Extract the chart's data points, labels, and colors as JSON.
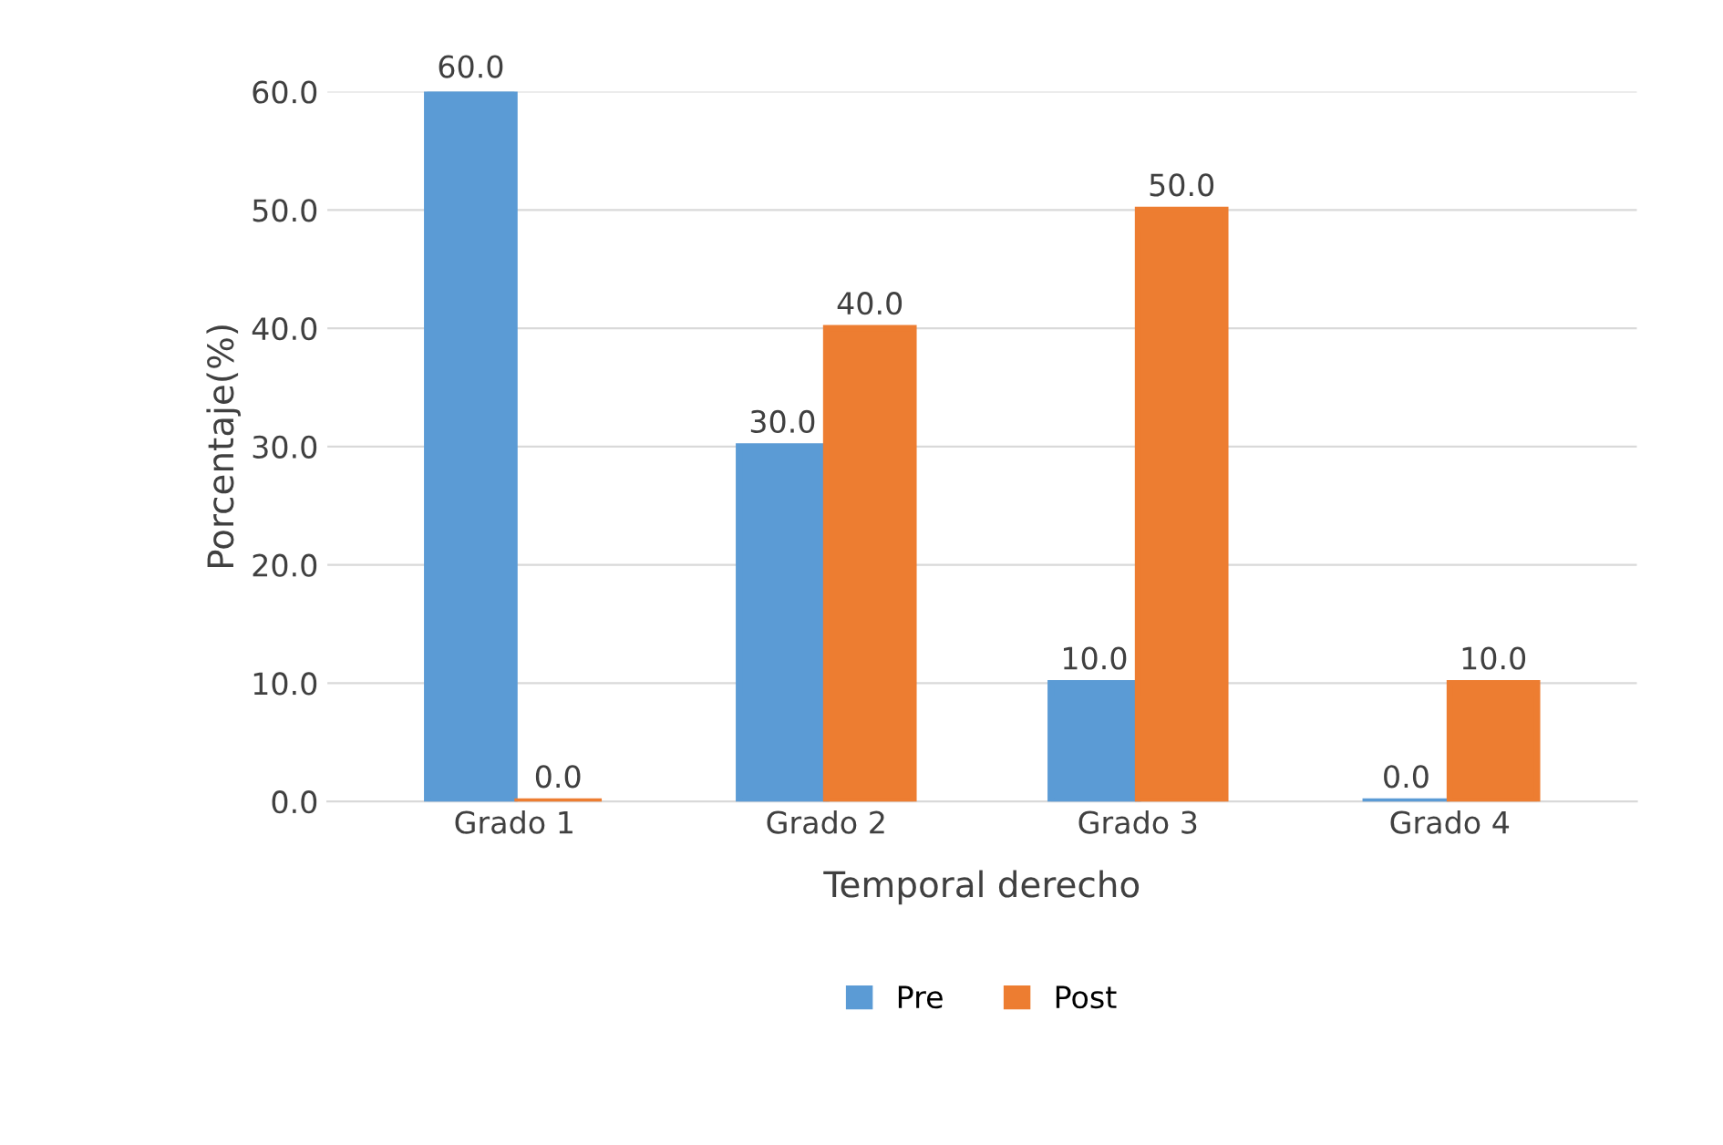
{
  "chart_data": {
    "type": "bar",
    "xlabel": "Temporal derecho",
    "ylabel": "Porcentaje(%)",
    "categories": [
      "Grado 1",
      "Grado 2",
      "Grado 3",
      "Grado 4"
    ],
    "series": [
      {
        "name": "Pre",
        "color": "#5b9bd5",
        "values": [
          60,
          30,
          10,
          0
        ],
        "value_labels": [
          "60.0",
          "30.0",
          "10.0",
          "0.0"
        ]
      },
      {
        "name": "Post",
        "color": "#ed7d31",
        "values": [
          0,
          40,
          50,
          10
        ],
        "value_labels": [
          "0.0",
          "40.0",
          "50.0",
          "10.0"
        ]
      }
    ],
    "ylim": [
      0,
      60
    ],
    "yticks": [
      {
        "value": 0,
        "label": "0.0"
      },
      {
        "value": 10,
        "label": "10.0"
      },
      {
        "value": 20,
        "label": "20.0"
      },
      {
        "value": 30,
        "label": "30.0"
      },
      {
        "value": 40,
        "label": "40.0"
      },
      {
        "value": 50,
        "label": "50.0"
      },
      {
        "value": 60,
        "label": "60.0"
      }
    ],
    "grid": "y",
    "legend": "bottom"
  }
}
